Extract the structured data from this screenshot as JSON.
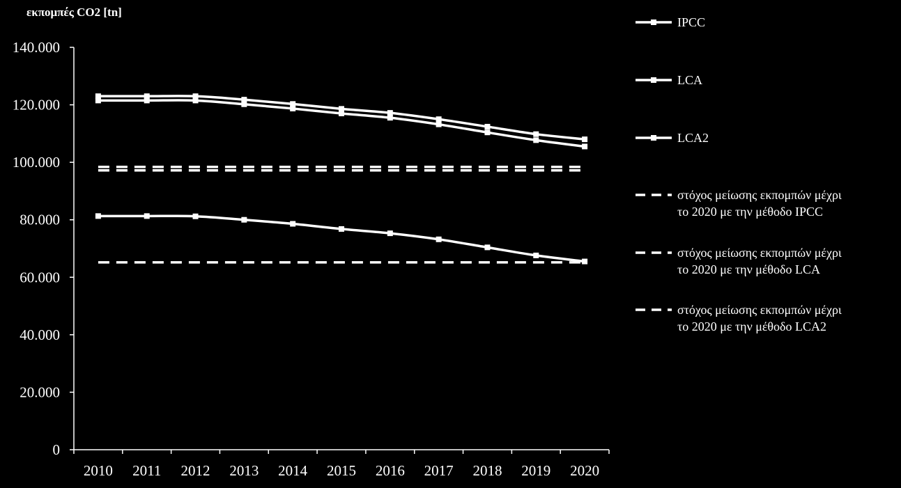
{
  "chart_data": {
    "type": "line",
    "title": "",
    "ylabel": "εκπομπές CO2 [tn]",
    "xlabel": "",
    "ylim": [
      0,
      140000
    ],
    "yticks": [
      0,
      20000,
      40000,
      60000,
      80000,
      100000,
      120000,
      140000
    ],
    "ytick_labels": [
      "0",
      "20.000",
      "40.000",
      "60.000",
      "80.000",
      "100.000",
      "120.000",
      "140.000"
    ],
    "categories": [
      "2010",
      "2011",
      "2012",
      "2013",
      "2014",
      "2015",
      "2016",
      "2017",
      "2018",
      "2019",
      "2020"
    ],
    "grid": false,
    "legend_position": "right",
    "series": [
      {
        "name": "IPCC",
        "style": "solid",
        "values": [
          123000,
          123000,
          123000,
          121800,
          120300,
          118600,
          117200,
          115000,
          112400,
          109800,
          108000
        ]
      },
      {
        "name": "LCA",
        "style": "solid",
        "values": [
          121500,
          121500,
          121500,
          120200,
          118700,
          117000,
          115500,
          113200,
          110400,
          107700,
          105500
        ]
      },
      {
        "name": "LCA2",
        "style": "solid",
        "values": [
          81300,
          81300,
          81200,
          80000,
          78600,
          76800,
          75300,
          73200,
          70400,
          67600,
          65500
        ]
      },
      {
        "name": "στόχος μείωσης εκπομπών μέχρι\nτο 2020 με την μέθοδο IPCC",
        "style": "dashed",
        "values": [
          98400,
          98400,
          98400,
          98400,
          98400,
          98400,
          98400,
          98400,
          98400,
          98400,
          98400
        ]
      },
      {
        "name": "στόχος μείωσης εκπομπών μέχρι\nτο 2020 με την μέθοδο LCA",
        "style": "dashed",
        "values": [
          97200,
          97200,
          97200,
          97200,
          97200,
          97200,
          97200,
          97200,
          97200,
          97200,
          97200
        ]
      },
      {
        "name": "στόχος μείωσης εκπομπών μέχρι\nτο 2020 με την μέθοδο LCA2",
        "style": "dashed",
        "values": [
          65200,
          65200,
          65200,
          65200,
          65200,
          65200,
          65200,
          65200,
          65200,
          65200,
          65200
        ]
      }
    ]
  }
}
